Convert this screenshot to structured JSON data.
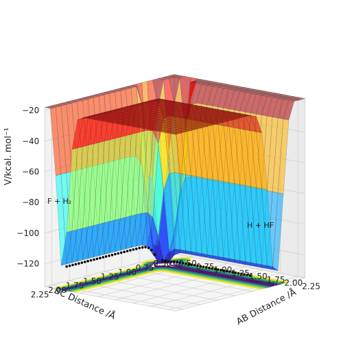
{
  "chart_data": {
    "type": "surface",
    "xlabel": "AB Distance /Å",
    "ylabel": "BC Distance /Å",
    "zlabel": "V/kcal. mol⁻¹",
    "x_ticks": [
      "0.50",
      "0.75",
      "1.00",
      "1.25",
      "1.50",
      "1.75",
      "2.00",
      "2.25"
    ],
    "y_ticks": [
      "0.50",
      "0.75",
      "1.00",
      "1.25",
      "1.50",
      "1.75",
      "2.00",
      "2.25"
    ],
    "z_ticks": [
      "−20",
      "−40",
      "−60",
      "−80",
      "−100",
      "−120"
    ],
    "xlim": [
      0.5,
      2.35
    ],
    "ylim": [
      0.5,
      2.35
    ],
    "zlim": [
      -135,
      -18
    ],
    "annotations": [
      {
        "id": "reactants",
        "text": "F + H₂"
      },
      {
        "id": "products",
        "text": "H + HF"
      }
    ],
    "colormap": "jet",
    "contour_colormap": "viridis",
    "trajectory_color": "#000000",
    "grid": true
  }
}
